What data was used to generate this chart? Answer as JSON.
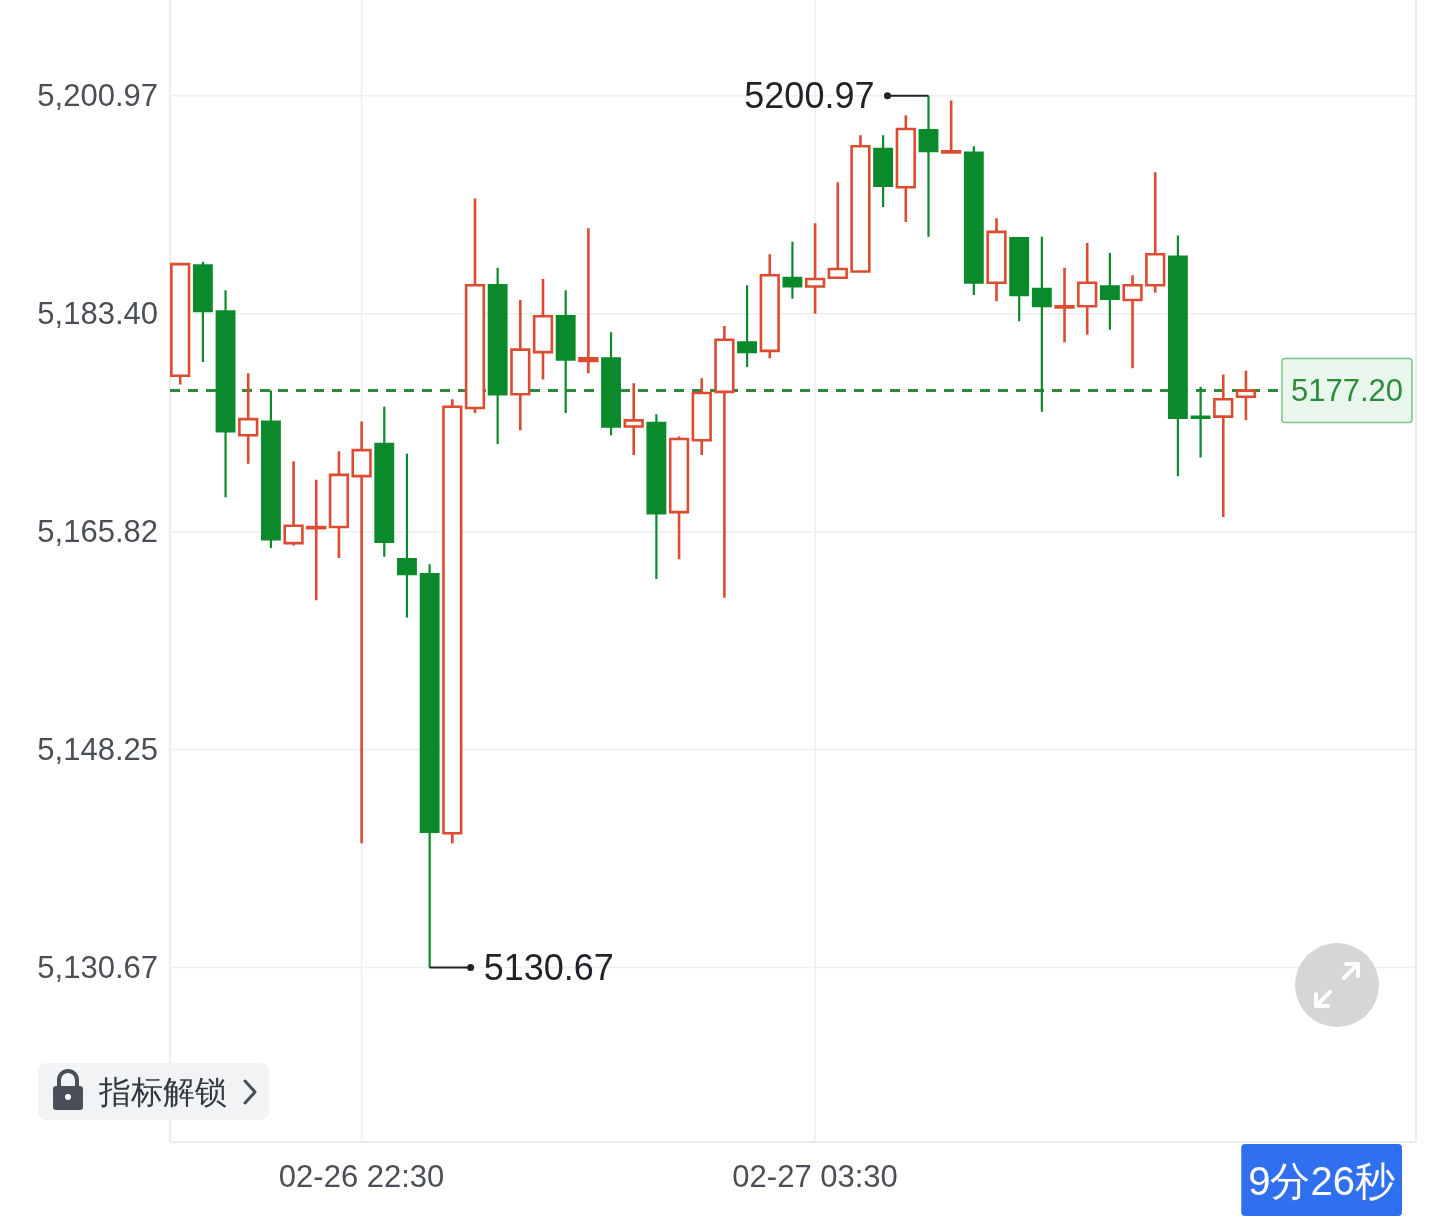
{
  "chart_data": {
    "type": "candlestick",
    "categories": [
      null,
      null,
      null,
      null,
      null,
      null,
      null,
      null,
      "02-26 22:30",
      null,
      null,
      null,
      null,
      null,
      null,
      null,
      null,
      null,
      null,
      null,
      null,
      null,
      null,
      null,
      null,
      null,
      null,
      null,
      "02-27 03:30",
      null,
      null,
      null,
      null,
      null,
      null,
      null,
      null,
      null,
      null,
      null,
      null,
      null,
      null,
      null,
      null,
      null,
      null,
      null
    ],
    "ohlc": [
      [
        5178.4,
        5187.4,
        5177.7,
        5187.4
      ],
      [
        5187.3,
        5187.6,
        5179.5,
        5183.6
      ],
      [
        5183.6,
        5185.3,
        5168.6,
        5173.9
      ],
      [
        5173.6,
        5178.6,
        5171.3,
        5174.9
      ],
      [
        5174.7,
        5177.2,
        5164.5,
        5165.2
      ],
      [
        5164.9,
        5171.5,
        5164.7,
        5166.3
      ],
      [
        5166.1,
        5170.0,
        5160.3,
        5166.2
      ],
      [
        5166.2,
        5172.3,
        5163.7,
        5170.4
      ],
      [
        5170.3,
        5174.7,
        5140.7,
        5172.4
      ],
      [
        5172.9,
        5175.9,
        5163.8,
        5165.0
      ],
      [
        5163.6,
        5172.1,
        5158.9,
        5162.4
      ],
      [
        5162.4,
        5163.2,
        5130.67,
        5141.6
      ],
      [
        5141.5,
        5176.5,
        5140.7,
        5175.9
      ],
      [
        5175.8,
        5192.7,
        5175.4,
        5185.7
      ],
      [
        5185.7,
        5187.1,
        5172.9,
        5176.9
      ],
      [
        5176.9,
        5184.5,
        5174.0,
        5180.5
      ],
      [
        5180.3,
        5186.2,
        5178.1,
        5183.2
      ],
      [
        5183.2,
        5185.3,
        5175.4,
        5179.7
      ],
      [
        5179.6,
        5190.3,
        5178.6,
        5179.8
      ],
      [
        5179.8,
        5181.9,
        5173.6,
        5174.3
      ],
      [
        5174.3,
        5177.8,
        5172.0,
        5174.8
      ],
      [
        5174.6,
        5175.3,
        5162.0,
        5167.3
      ],
      [
        5167.4,
        5173.5,
        5163.6,
        5173.3
      ],
      [
        5173.2,
        5178.2,
        5172.0,
        5177.0
      ],
      [
        5177.1,
        5182.4,
        5160.5,
        5181.3
      ],
      [
        5181.1,
        5185.7,
        5179.1,
        5180.3
      ],
      [
        5180.4,
        5188.2,
        5179.8,
        5186.5
      ],
      [
        5186.3,
        5189.2,
        5184.6,
        5185.6
      ],
      [
        5185.6,
        5190.7,
        5183.4,
        5186.2
      ],
      [
        5186.3,
        5194.0,
        5186.3,
        5187.0
      ],
      [
        5186.8,
        5197.8,
        5186.8,
        5196.9
      ],
      [
        5196.7,
        5197.8,
        5192.0,
        5193.7
      ],
      [
        5193.6,
        5199.4,
        5190.8,
        5198.3
      ],
      [
        5198.2,
        5200.97,
        5189.6,
        5196.5
      ],
      [
        5196.4,
        5200.6,
        5196.4,
        5196.5
      ],
      [
        5196.4,
        5196.9,
        5184.9,
        5185.9
      ],
      [
        5185.9,
        5191.1,
        5184.4,
        5190.0
      ],
      [
        5189.5,
        5189.5,
        5182.8,
        5184.9
      ],
      [
        5185.4,
        5189.6,
        5175.5,
        5184.0
      ],
      [
        5183.9,
        5187.1,
        5181.1,
        5184.0
      ],
      [
        5184.0,
        5189.1,
        5181.7,
        5185.9
      ],
      [
        5185.6,
        5188.3,
        5182.1,
        5184.6
      ],
      [
        5184.5,
        5186.5,
        5179.0,
        5185.7
      ],
      [
        5185.7,
        5194.8,
        5185.1,
        5188.2
      ],
      [
        5188.0,
        5189.7,
        5170.3,
        5175.0
      ],
      [
        5175.1,
        5177.5,
        5171.8,
        5175.0
      ],
      [
        5175.1,
        5178.5,
        5167.0,
        5176.5
      ],
      [
        5176.7,
        5178.8,
        5174.8,
        5177.2
      ]
    ],
    "colors": [
      "#dd4b31",
      "#0b8a2c",
      "#0b8a2c",
      "#dd4b31",
      "#0b8a2c",
      "#dd4b31",
      "#dd4b31",
      "#dd4b31",
      "#dd4b31",
      "#0b8a2c",
      "#0b8a2c",
      "#0b8a2c",
      "#dd4b31",
      "#dd4b31",
      "#0b8a2c",
      "#dd4b31",
      "#dd4b31",
      "#0b8a2c",
      "#dd4b31",
      "#0b8a2c",
      "#dd4b31",
      "#0b8a2c",
      "#dd4b31",
      "#dd4b31",
      "#dd4b31",
      "#0b8a2c",
      "#dd4b31",
      "#0b8a2c",
      "#dd4b31",
      "#dd4b31",
      "#dd4b31",
      "#0b8a2c",
      "#dd4b31",
      "#0b8a2c",
      "#dd4b31",
      "#0b8a2c",
      "#dd4b31",
      "#0b8a2c",
      "#0b8a2c",
      "#dd4b31",
      "#dd4b31",
      "#0b8a2c",
      "#dd4b31",
      "#dd4b31",
      "#0b8a2c",
      "#0b8a2c",
      "#dd4b31",
      "#dd4b31"
    ],
    "ylim": [
      5116.6,
      5208.7
    ],
    "yticks": [
      {
        "value": 5130.67,
        "label": "5,130.67"
      },
      {
        "value": 5148.25,
        "label": "5,148.25"
      },
      {
        "value": 5165.82,
        "label": "5,165.82"
      },
      {
        "value": 5183.4,
        "label": "5,183.40"
      },
      {
        "value": 5200.97,
        "label": "5,200.97"
      }
    ],
    "grid": true,
    "ref_lines": [
      {
        "axis": "y",
        "value": 5177.2,
        "label": "5177.20",
        "color": "#2e8b3e",
        "line_style": "dashed"
      }
    ],
    "annotations": [
      "5200.97",
      "5130.67",
      "指标解锁",
      "9分26秒"
    ]
  }
}
